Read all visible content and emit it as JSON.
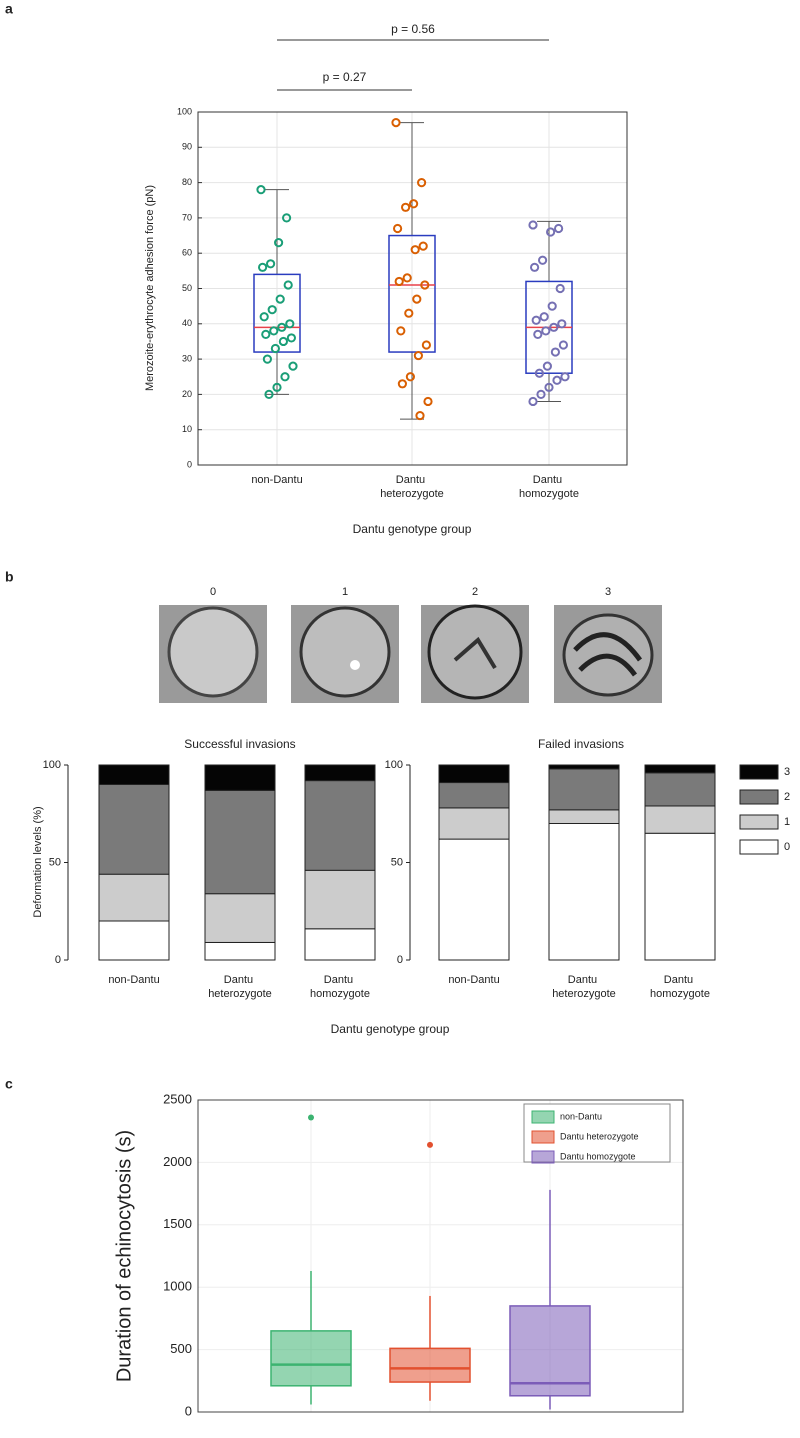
{
  "chart_data": [
    {
      "type": "box_strip",
      "panel_label": "a",
      "ylabel": "Merozoite-erythrocyte adhesion force (pN)",
      "xlabel": "Dantu genotype group",
      "categories": [
        "non-Dantu",
        "Dantu heterozygote",
        "Dantu homozygote"
      ],
      "ylim": [
        0,
        100
      ],
      "yticks": [
        0,
        10,
        20,
        30,
        40,
        50,
        60,
        70,
        80,
        90,
        100
      ],
      "grid": true,
      "colors": [
        "#1a9e77",
        "#d95f02",
        "#7570b3"
      ],
      "box_color": "#2a3cbf",
      "median_color": "#e8414a",
      "points": [
        [
          78,
          70,
          63,
          57,
          56,
          51,
          47,
          44,
          42,
          40,
          39,
          38,
          37,
          36,
          35,
          33,
          30,
          28,
          25,
          22,
          20
        ],
        [
          97,
          80,
          74,
          73,
          67,
          62,
          61,
          53,
          52,
          51,
          47,
          43,
          38,
          34,
          31,
          25,
          23,
          18,
          14
        ],
        [
          68,
          67,
          66,
          58,
          56,
          50,
          45,
          42,
          41,
          40,
          39,
          38,
          37,
          34,
          32,
          28,
          26,
          25,
          24,
          22,
          20,
          18
        ]
      ],
      "boxes": [
        {
          "min": 20,
          "q1": 32,
          "median": 39,
          "q3": 54,
          "max": 78
        },
        {
          "min": 13,
          "q1": 32,
          "median": 51,
          "q3": 65,
          "max": 97
        },
        {
          "min": 18,
          "q1": 26,
          "median": 39,
          "q3": 52,
          "max": 69
        }
      ],
      "annotations": [
        "p = 0.27",
        "p = 0.56"
      ]
    },
    {
      "type": "stacked_bar",
      "panel_label": "b",
      "image_labels": [
        "0",
        "1",
        "2",
        "3"
      ],
      "ylabel": "Deformation levels (%)",
      "xlabel": "Dantu genotype group",
      "categories": [
        "non-Dantu",
        "Dantu heterozygote",
        "Dantu homozygote"
      ],
      "ylim": [
        0,
        100
      ],
      "yticks": [
        0,
        50,
        100
      ],
      "series": [
        {
          "name": "0",
          "color": "#ffffff"
        },
        {
          "name": "1",
          "color": "#cccccc"
        },
        {
          "name": "2",
          "color": "#7a7a7a"
        },
        {
          "name": "3",
          "color": "#050505"
        }
      ],
      "panels": [
        {
          "title": "Successful invasions",
          "values": [
            [
              20,
              9,
              16
            ],
            [
              24,
              25,
              30
            ],
            [
              46,
              53,
              46
            ],
            [
              10,
              13,
              8
            ]
          ]
        },
        {
          "title": "Failed invasions",
          "values": [
            [
              62,
              70,
              65
            ],
            [
              16,
              7,
              14
            ],
            [
              13,
              21,
              17
            ],
            [
              9,
              2,
              4
            ]
          ]
        }
      ]
    },
    {
      "type": "box",
      "panel_label": "c",
      "ylabel": "Duration of echinocytosis (s)",
      "ylim": [
        0,
        2500
      ],
      "yticks": [
        0,
        500,
        1000,
        1500,
        2000,
        2500
      ],
      "grid": true,
      "legend": "upper right",
      "series": [
        {
          "name": "non-Dantu",
          "color": "#3cb371",
          "min": 60,
          "q1": 210,
          "median": 380,
          "q3": 650,
          "max": 1130,
          "outliers": [
            2360
          ]
        },
        {
          "name": "Dantu heterozygote",
          "color": "#e2502f",
          "min": 90,
          "q1": 240,
          "median": 350,
          "q3": 510,
          "max": 930,
          "outliers": [
            2140
          ]
        },
        {
          "name": "Dantu homozygote",
          "color": "#7b5cb8",
          "min": 20,
          "q1": 130,
          "median": 230,
          "q3": 850,
          "max": 1780,
          "outliers": []
        }
      ]
    }
  ]
}
